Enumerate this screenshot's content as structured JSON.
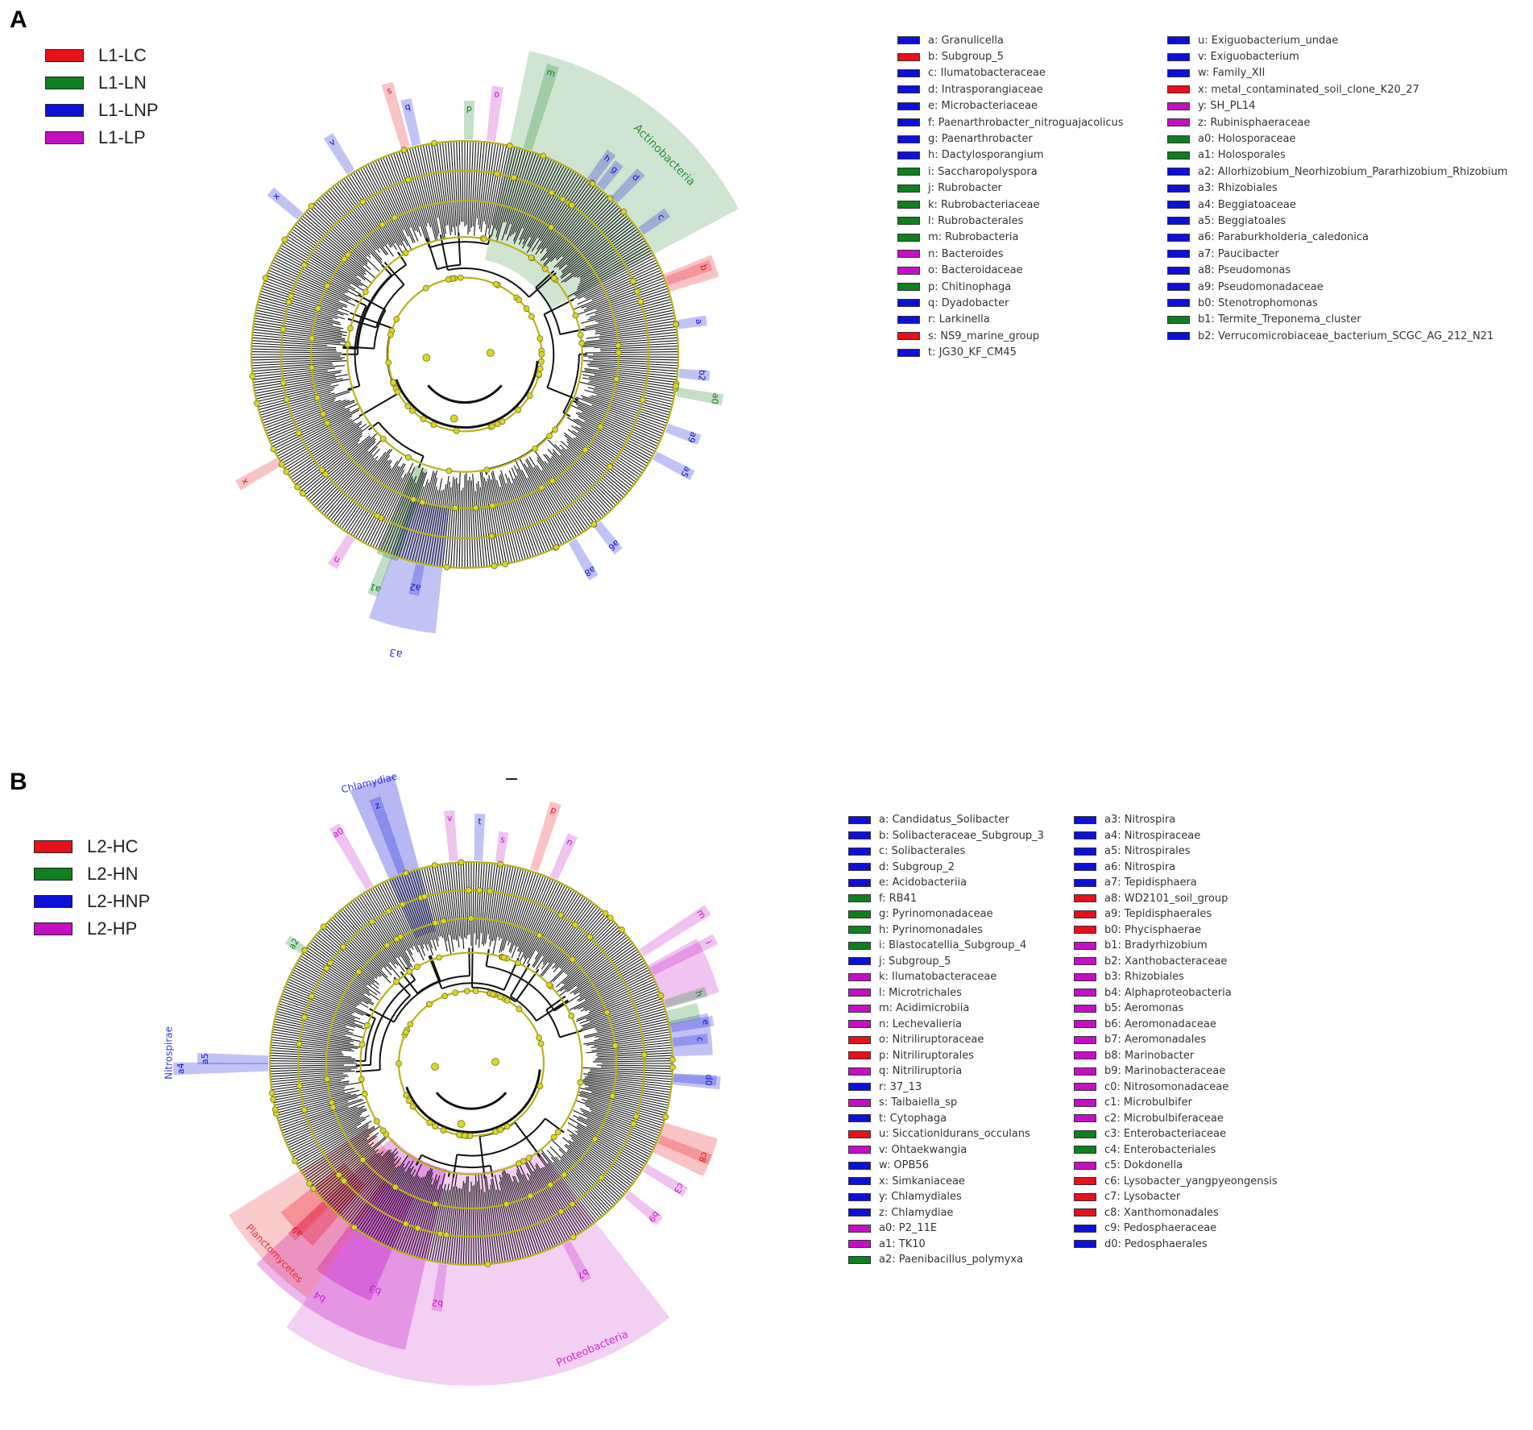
{
  "colors": {
    "red": "#e8101a",
    "green": "#0f7f1f",
    "blue": "#0d10d8",
    "magenta": "#c50fc5"
  },
  "panels": [
    {
      "label": "A",
      "groups": [
        {
          "label": "L1-LC",
          "color": "red"
        },
        {
          "label": "L1-LN",
          "color": "green"
        },
        {
          "label": "L1-LNP",
          "color": "blue"
        },
        {
          "label": "L1-LP",
          "color": "magenta"
        }
      ],
      "clades": [
        {
          "key": "a",
          "name": "Granulicella",
          "color": "blue"
        },
        {
          "key": "b",
          "name": "Subgroup_5",
          "color": "red"
        },
        {
          "key": "c",
          "name": "Ilumatobacteraceae",
          "color": "blue"
        },
        {
          "key": "d",
          "name": "Intrasporangiaceae",
          "color": "blue"
        },
        {
          "key": "e",
          "name": "Microbacteriaceae",
          "color": "blue"
        },
        {
          "key": "f",
          "name": "Paenarthrobacter_nitroguajacolicus",
          "color": "blue"
        },
        {
          "key": "g",
          "name": "Paenarthrobacter",
          "color": "blue"
        },
        {
          "key": "h",
          "name": "Dactylosporangium",
          "color": "blue"
        },
        {
          "key": "i",
          "name": "Saccharopolyspora",
          "color": "green"
        },
        {
          "key": "j",
          "name": "Rubrobacter",
          "color": "green"
        },
        {
          "key": "k",
          "name": "Rubrobacteriaceae",
          "color": "green"
        },
        {
          "key": "l",
          "name": "Rubrobacterales",
          "color": "green"
        },
        {
          "key": "m",
          "name": "Rubrobacteria",
          "color": "green"
        },
        {
          "key": "n",
          "name": "Bacteroides",
          "color": "magenta"
        },
        {
          "key": "o",
          "name": "Bacteroidaceae",
          "color": "magenta"
        },
        {
          "key": "p",
          "name": "Chitinophaga",
          "color": "green"
        },
        {
          "key": "q",
          "name": "Dyadobacter",
          "color": "blue"
        },
        {
          "key": "r",
          "name": "Larkinella",
          "color": "blue"
        },
        {
          "key": "s",
          "name": "NS9_marine_group",
          "color": "red"
        },
        {
          "key": "t",
          "name": "JG30_KF_CM45",
          "color": "blue"
        },
        {
          "key": "u",
          "name": "Exiguobacterium_undae",
          "color": "blue"
        },
        {
          "key": "v",
          "name": "Exiguobacterium",
          "color": "blue"
        },
        {
          "key": "w",
          "name": "Family_XII",
          "color": "blue"
        },
        {
          "key": "x",
          "name": "metal_contaminated_soil_clone_K20_27",
          "color": "red"
        },
        {
          "key": "y",
          "name": "SH_PL14",
          "color": "magenta"
        },
        {
          "key": "z",
          "name": "Rubinisphaeraceae",
          "color": "magenta"
        },
        {
          "key": "a0",
          "name": "Holosporaceae",
          "color": "green"
        },
        {
          "key": "a1",
          "name": "Holosporales",
          "color": "green"
        },
        {
          "key": "a2",
          "name": "Allorhizobium_Neorhizobium_Pararhizobium_Rhizobium",
          "color": "blue"
        },
        {
          "key": "a3",
          "name": "Rhizobiales",
          "color": "blue"
        },
        {
          "key": "a4",
          "name": "Beggiatoaceae",
          "color": "blue"
        },
        {
          "key": "a5",
          "name": "Beggiatoales",
          "color": "blue"
        },
        {
          "key": "a6",
          "name": "Paraburkholderia_caledonica",
          "color": "blue"
        },
        {
          "key": "a7",
          "name": "Paucibacter",
          "color": "blue"
        },
        {
          "key": "a8",
          "name": "Pseudomonas",
          "color": "blue"
        },
        {
          "key": "a9",
          "name": "Pseudomonadaceae",
          "color": "blue"
        },
        {
          "key": "b0",
          "name": "Stenotrophomonas",
          "color": "blue"
        },
        {
          "key": "b1",
          "name": "Termite_Treponema_cluster",
          "color": "green"
        },
        {
          "key": "b2",
          "name": "Verrucomicrobiaceae_bacterium_SCGC_AG_212_N21",
          "color": "blue"
        }
      ],
      "sector_labels": [
        {
          "text": "Actinobacteria",
          "color": "green"
        },
        {
          "text": "a3",
          "color": "blue"
        }
      ]
    },
    {
      "label": "B",
      "groups": [
        {
          "label": "L2-HC",
          "color": "red"
        },
        {
          "label": "L2-HN",
          "color": "green"
        },
        {
          "label": "L2-HNP",
          "color": "blue"
        },
        {
          "label": "L2-HP",
          "color": "magenta"
        }
      ],
      "clades": [
        {
          "key": "a",
          "name": "Candidatus_Solibacter",
          "color": "blue"
        },
        {
          "key": "b",
          "name": "Solibacteraceae_Subgroup_3",
          "color": "blue"
        },
        {
          "key": "c",
          "name": "Solibacterales",
          "color": "blue"
        },
        {
          "key": "d",
          "name": "Subgroup_2",
          "color": "blue"
        },
        {
          "key": "e",
          "name": "Acidobacteriia",
          "color": "blue"
        },
        {
          "key": "f",
          "name": "RB41",
          "color": "green"
        },
        {
          "key": "g",
          "name": "Pyrinomonadaceae",
          "color": "green"
        },
        {
          "key": "h",
          "name": "Pyrinomonadales",
          "color": "green"
        },
        {
          "key": "i",
          "name": "Blastocatellia_Subgroup_4",
          "color": "green"
        },
        {
          "key": "j",
          "name": "Subgroup_5",
          "color": "blue"
        },
        {
          "key": "k",
          "name": "Ilumatobacteraceae",
          "color": "magenta"
        },
        {
          "key": "l",
          "name": "Microtrichales",
          "color": "magenta"
        },
        {
          "key": "m",
          "name": "Acidimicrobiia",
          "color": "magenta"
        },
        {
          "key": "n",
          "name": "Lechevalieria",
          "color": "magenta"
        },
        {
          "key": "o",
          "name": "Nitriliruptoraceae",
          "color": "red"
        },
        {
          "key": "p",
          "name": "Nitriliruptorales",
          "color": "red"
        },
        {
          "key": "q",
          "name": "Nitriliruptoria",
          "color": "magenta"
        },
        {
          "key": "r",
          "name": "37_13",
          "color": "blue"
        },
        {
          "key": "s",
          "name": "Taibaiella_sp",
          "color": "magenta"
        },
        {
          "key": "t",
          "name": "Cytophaga",
          "color": "blue"
        },
        {
          "key": "u",
          "name": "Siccationidurans_occulans",
          "color": "red"
        },
        {
          "key": "v",
          "name": "Ohtaekwangia",
          "color": "magenta"
        },
        {
          "key": "w",
          "name": "OPB56",
          "color": "blue"
        },
        {
          "key": "x",
          "name": "Simkaniaceae",
          "color": "blue"
        },
        {
          "key": "y",
          "name": "Chlamydiales",
          "color": "blue"
        },
        {
          "key": "z",
          "name": "Chlamydiae",
          "color": "blue"
        },
        {
          "key": "a0",
          "name": "P2_11E",
          "color": "magenta"
        },
        {
          "key": "a1",
          "name": "TK10",
          "color": "magenta"
        },
        {
          "key": "a2",
          "name": "Paenibacillus_polymyxa",
          "color": "green"
        },
        {
          "key": "a3",
          "name": "Nitrospira",
          "color": "blue"
        },
        {
          "key": "a4",
          "name": "Nitrospiraceae",
          "color": "blue"
        },
        {
          "key": "a5",
          "name": "Nitrospirales",
          "color": "blue"
        },
        {
          "key": "a6",
          "name": "Nitrospira",
          "color": "blue"
        },
        {
          "key": "a7",
          "name": "Tepidisphaera",
          "color": "blue"
        },
        {
          "key": "a8",
          "name": "WD2101_soil_group",
          "color": "red"
        },
        {
          "key": "a9",
          "name": "Tepidisphaerales",
          "color": "red"
        },
        {
          "key": "b0",
          "name": "Phycisphaerae",
          "color": "red"
        },
        {
          "key": "b1",
          "name": "Bradyrhizobium",
          "color": "magenta"
        },
        {
          "key": "b2",
          "name": "Xanthobacteraceae",
          "color": "magenta"
        },
        {
          "key": "b3",
          "name": "Rhizobiales",
          "color": "magenta"
        },
        {
          "key": "b4",
          "name": "Alphaproteobacteria",
          "color": "magenta"
        },
        {
          "key": "b5",
          "name": "Aeromonas",
          "color": "magenta"
        },
        {
          "key": "b6",
          "name": "Aeromonadaceae",
          "color": "magenta"
        },
        {
          "key": "b7",
          "name": "Aeromonadales",
          "color": "magenta"
        },
        {
          "key": "b8",
          "name": "Marinobacter",
          "color": "magenta"
        },
        {
          "key": "b9",
          "name": "Marinobacteraceae",
          "color": "magenta"
        },
        {
          "key": "c0",
          "name": "Nitrosomonadaceae",
          "color": "magenta"
        },
        {
          "key": "c1",
          "name": "Microbulbifer",
          "color": "magenta"
        },
        {
          "key": "c2",
          "name": "Microbulbiferaceae",
          "color": "magenta"
        },
        {
          "key": "c3",
          "name": "Enterobacteriaceae",
          "color": "green"
        },
        {
          "key": "c4",
          "name": "Enterobacteriales",
          "color": "green"
        },
        {
          "key": "c5",
          "name": "Dokdonella",
          "color": "magenta"
        },
        {
          "key": "c6",
          "name": "Lysobacter_yangpyeongensis",
          "color": "red"
        },
        {
          "key": "c7",
          "name": "Lysobacter",
          "color": "red"
        },
        {
          "key": "c8",
          "name": "Xanthomonadales",
          "color": "red"
        },
        {
          "key": "c9",
          "name": "Pedosphaeraceae",
          "color": "blue"
        },
        {
          "key": "d0",
          "name": "Pedosphaerales",
          "color": "blue"
        }
      ],
      "sector_labels": [
        {
          "text": "Chlamydiae",
          "color": "blue"
        },
        {
          "text": "Nitrospirae",
          "color": "blue"
        },
        {
          "text": "Planctomycetes",
          "color": "red"
        },
        {
          "text": "Proteobacteria",
          "color": "magenta"
        },
        {
          "text": "b4",
          "color": "magenta"
        },
        {
          "text": "b3",
          "color": "magenta"
        }
      ]
    }
  ]
}
